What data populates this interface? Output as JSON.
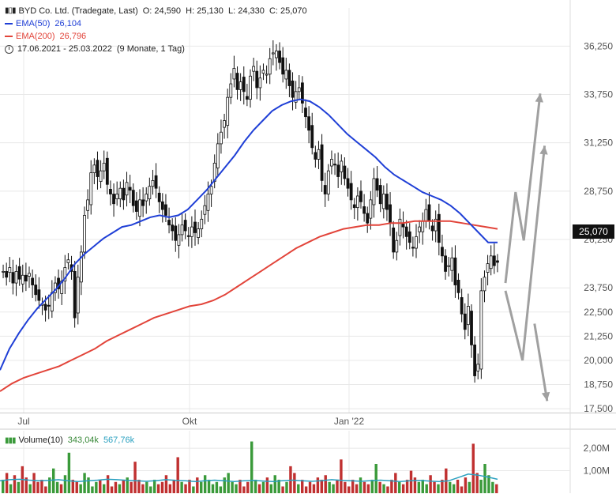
{
  "legend": {
    "title": "BYD Co. Ltd. (Tradegate, Last)",
    "ohlc": "O: 24,590  H: 25,130  L: 24,330  C: 25,070",
    "ema50_label": "EMA(50)",
    "ema50_value": "26,104",
    "ema200_label": "EMA(200)",
    "ema200_value": "26,796",
    "period": "17.06.2021 - 25.03.2022",
    "period_detail": "(9 Monate, 1 Tag)"
  },
  "volume_legend": {
    "label": "Volume(10)",
    "value1": "343,04k",
    "value2": "567,76k"
  },
  "last_price_tag": "25,070",
  "colors": {
    "ema50": "#1f3fd6",
    "ema200": "#e2443a",
    "candle": "#111111",
    "vol_up": "#3a9a3a",
    "vol_down": "#c03030",
    "vol_avg": "#2aa0c0",
    "arrows": "#a0a0a0",
    "grid": "#e8e8e8"
  },
  "chart_data": {
    "type": "line",
    "title": "BYD Co. Ltd. (Tradegate, Last)",
    "y_axis": {
      "ticks": [
        "36,250",
        "33,750",
        "31,250",
        "28,750",
        "26,250",
        "23,750",
        "22,500",
        "21,250",
        "20,000",
        "18,750",
        "17,500"
      ],
      "range": [
        17.3,
        37.0
      ]
    },
    "x_axis": {
      "ticks": [
        "Jul",
        "Okt",
        "Jan '22"
      ]
    },
    "ohlc_last": {
      "open": 24.59,
      "high": 25.13,
      "low": 24.33,
      "close": 25.07
    },
    "price_close": [
      24.6,
      24.3,
      24.8,
      24.0,
      24.6,
      24.2,
      24.4,
      24.1,
      24.5,
      23.9,
      23.4,
      23.1,
      22.9,
      22.6,
      22.8,
      23.5,
      24.0,
      23.7,
      24.1,
      24.8,
      25.2,
      24.6,
      22.2,
      24.3,
      25.6,
      27.5,
      28.3,
      29.7,
      30.1,
      29.5,
      29.8,
      30.2,
      29.1,
      28.6,
      28.1,
      28.6,
      28.9,
      28.3,
      29.2,
      28.8,
      28.0,
      27.7,
      28.3,
      28.0,
      28.6,
      29.0,
      29.3,
      28.9,
      28.2,
      27.8,
      27.5,
      27.0,
      26.7,
      26.2,
      26.5,
      27.0,
      26.7,
      26.4,
      26.9,
      26.6,
      26.8,
      27.3,
      28.0,
      28.6,
      29.0,
      30.2,
      31.2,
      31.8,
      32.4,
      33.6,
      34.3,
      35.1,
      34.0,
      34.4,
      33.9,
      33.5,
      34.7,
      35.2,
      34.1,
      34.6,
      35.0,
      34.8,
      35.6,
      35.9,
      36.0,
      35.4,
      34.8,
      35.0,
      34.2,
      33.6,
      33.9,
      34.1,
      33.3,
      32.6,
      31.9,
      31.0,
      30.4,
      30.9,
      29.3,
      28.6,
      29.8,
      30.4,
      30.1,
      29.5,
      30.3,
      29.4,
      28.9,
      28.3,
      27.9,
      28.5,
      28.2,
      27.6,
      27.1,
      28.3,
      29.4,
      28.8,
      28.1,
      28.6,
      27.8,
      27.1,
      25.6,
      26.2,
      27.3,
      26.9,
      26.4,
      26.1,
      25.8,
      26.4,
      26.9,
      27.2,
      27.8,
      27.2,
      26.7,
      27.3,
      26.1,
      25.4,
      24.6,
      24.9,
      25.3,
      23.9,
      23.5,
      22.4,
      21.6,
      22.8,
      20.8,
      19.2,
      19.8,
      23.6,
      24.3,
      25.0,
      25.4,
      24.9,
      25.07
    ],
    "ema50": [
      19.5,
      20.6,
      21.4,
      22.1,
      22.7,
      23.2,
      23.7,
      24.3,
      25.0,
      25.5,
      25.9,
      26.3,
      26.6,
      26.9,
      27.0,
      27.2,
      27.4,
      27.5,
      27.4,
      27.5,
      27.8,
      28.3,
      28.8,
      29.4,
      30.0,
      30.6,
      31.3,
      31.9,
      32.4,
      32.9,
      33.2,
      33.4,
      33.5,
      33.4,
      33.1,
      32.7,
      32.2,
      31.7,
      31.3,
      30.9,
      30.5,
      30.0,
      29.6,
      29.3,
      29.0,
      28.7,
      28.5,
      28.3,
      28.0,
      27.6,
      27.1,
      26.6,
      26.1,
      26.1
    ],
    "ema200": [
      18.4,
      18.8,
      19.1,
      19.3,
      19.5,
      19.7,
      20.0,
      20.3,
      20.6,
      21.0,
      21.3,
      21.6,
      21.9,
      22.2,
      22.4,
      22.6,
      22.8,
      22.9,
      23.1,
      23.4,
      23.8,
      24.2,
      24.6,
      25.0,
      25.4,
      25.8,
      26.1,
      26.4,
      26.6,
      26.8,
      26.9,
      27.0,
      27.0,
      27.1,
      27.1,
      27.2,
      27.2,
      27.2,
      27.2,
      27.1,
      27.0,
      26.9,
      26.8
    ],
    "volume": [
      0.6,
      0.9,
      0.4,
      0.8,
      0.5,
      1.2,
      0.7,
      0.4,
      0.9,
      0.5,
      0.6,
      0.3,
      0.7,
      1.1,
      0.5,
      0.4,
      0.8,
      1.8,
      0.6,
      0.5,
      0.4,
      0.9,
      0.7,
      0.3,
      0.5,
      0.6,
      0.4,
      0.8,
      0.3,
      0.5,
      0.4,
      0.6,
      0.7,
      0.5,
      1.4,
      0.6,
      0.4,
      0.5,
      0.3,
      0.6,
      0.4,
      0.5,
      0.8,
      0.4,
      0.6,
      1.6,
      0.5,
      0.4,
      0.6,
      0.3,
      0.7,
      0.5,
      0.8,
      0.6,
      0.4,
      0.5,
      0.3,
      0.7,
      0.9,
      0.5,
      0.4,
      0.6,
      0.3,
      0.5,
      2.3,
      0.6,
      0.4,
      0.5,
      0.7,
      0.4,
      0.8,
      0.6,
      0.3,
      0.5,
      1.2,
      0.9,
      0.4,
      0.6,
      0.3,
      0.5,
      0.4,
      0.7,
      0.6,
      0.8,
      0.5,
      0.4,
      0.6,
      1.5,
      0.5,
      0.3,
      0.6,
      0.4,
      0.7,
      0.5,
      0.4,
      0.6,
      1.3,
      0.5,
      0.4,
      0.3,
      0.6,
      0.9,
      0.5,
      0.4,
      0.6,
      1.0,
      0.7,
      0.5,
      0.6,
      0.4,
      0.8,
      0.5,
      0.4,
      0.6,
      1.1,
      0.5,
      0.4,
      0.6,
      0.3,
      0.7,
      0.5,
      2.2,
      0.9,
      0.6,
      1.3,
      0.8,
      0.5,
      0.4
    ],
    "volume_avg": [
      0.55,
      0.6,
      0.62,
      0.58,
      0.55,
      0.57,
      0.6,
      0.55,
      0.52,
      0.55,
      0.58,
      0.62,
      0.6,
      0.57,
      0.55,
      0.53,
      0.56,
      0.6,
      0.57,
      0.55,
      0.52,
      0.55,
      0.58,
      0.55,
      0.52,
      0.55,
      0.57,
      0.54,
      0.52,
      0.56,
      0.58,
      0.55,
      0.53,
      0.56,
      0.6,
      0.57,
      0.55,
      0.53,
      0.56,
      0.58,
      0.55,
      0.52,
      0.55,
      0.57,
      0.54,
      0.52,
      0.55,
      0.7,
      0.85,
      0.8,
      0.72,
      0.62
    ],
    "volume_axis": {
      "ticks": [
        "2,00M",
        "1,00M"
      ]
    },
    "scenario_arrows": [
      {
        "points": [
          [
            0,
            24.0
          ],
          [
            0.16,
            28.7
          ],
          [
            0.29,
            26.2
          ],
          [
            0.55,
            33.8
          ]
        ]
      },
      {
        "points": [
          [
            0,
            23.6
          ],
          [
            0.27,
            20.0
          ],
          [
            0.62,
            31.1
          ]
        ]
      },
      {
        "points": [
          [
            0.46,
            21.9
          ],
          [
            0.66,
            17.9
          ]
        ]
      }
    ]
  }
}
